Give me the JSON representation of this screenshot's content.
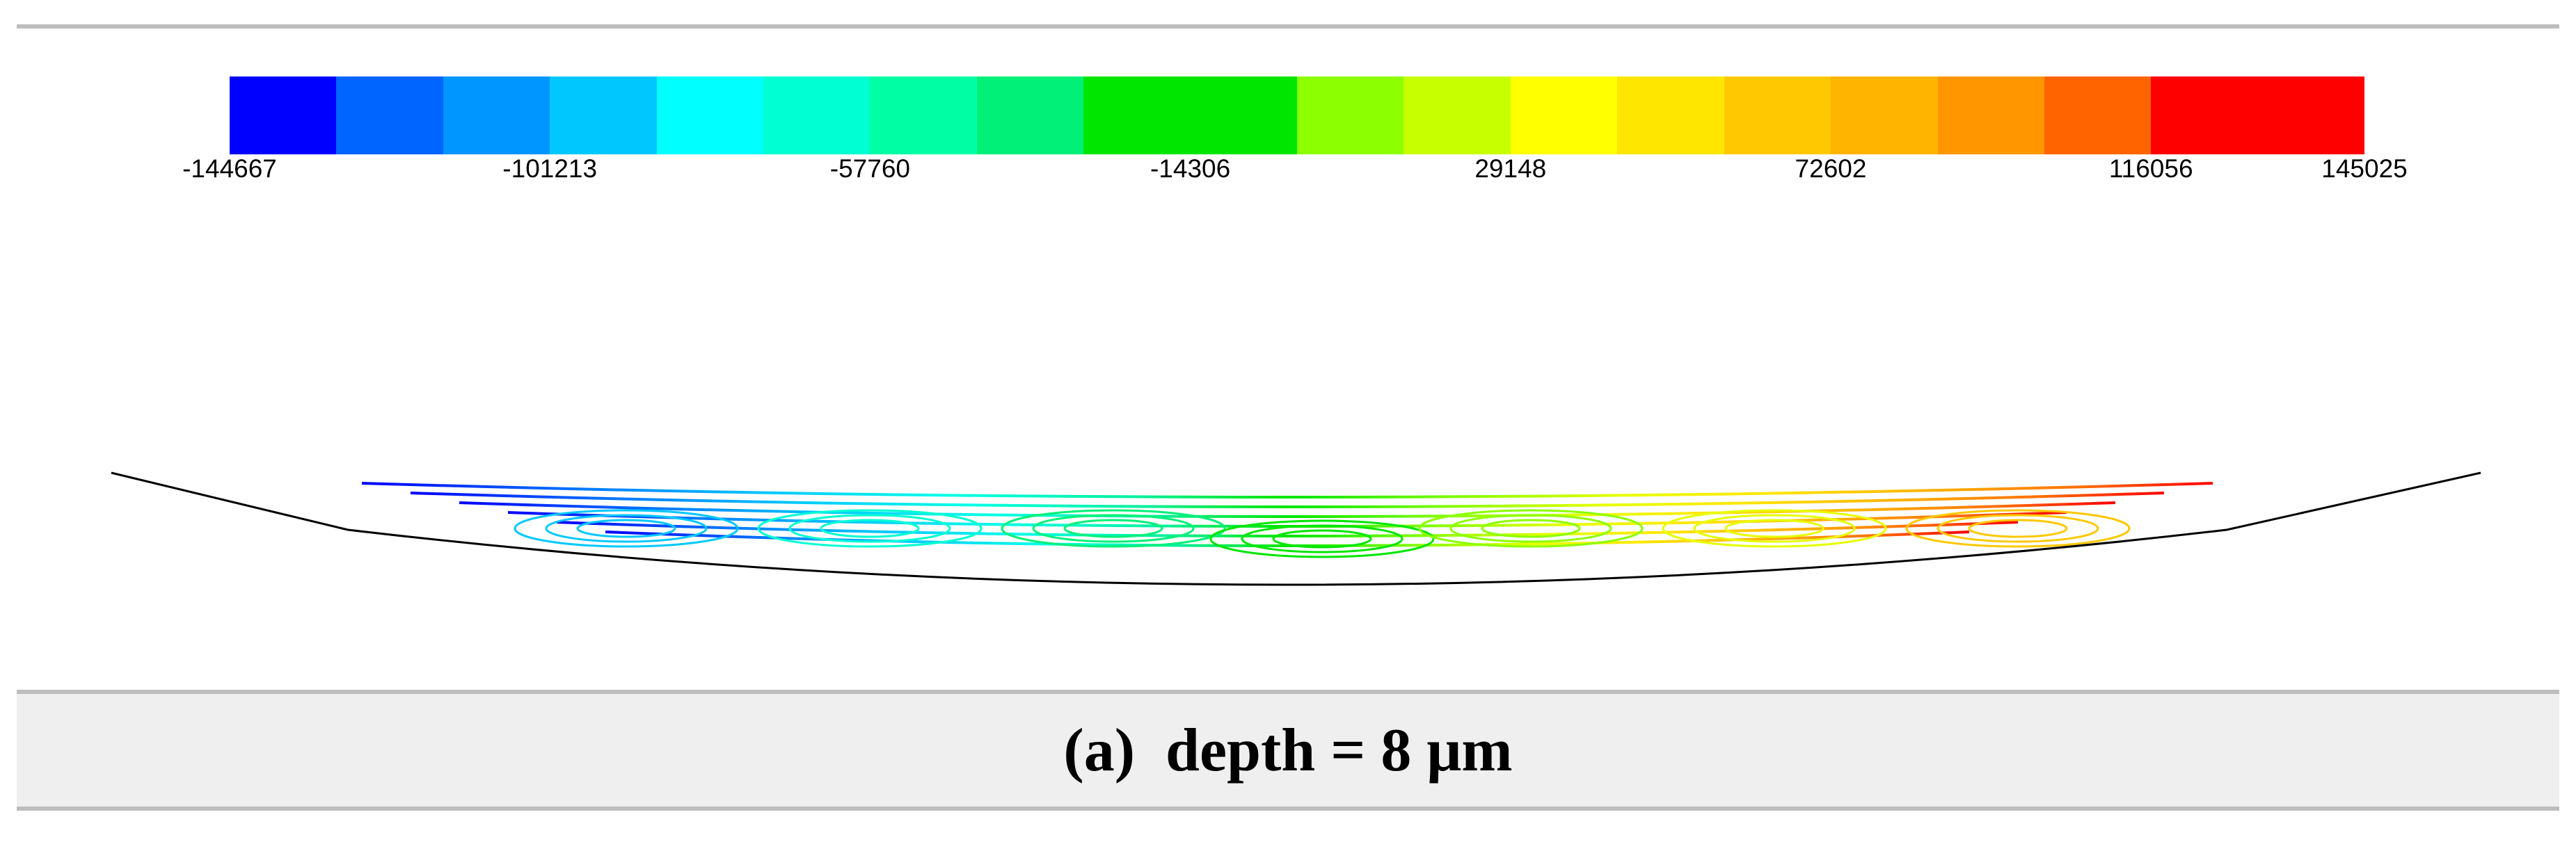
{
  "legend": {
    "colors": [
      "#0000ff",
      "#0064ff",
      "#0096ff",
      "#00c8ff",
      "#00ffff",
      "#00ffd2",
      "#00ffa5",
      "#00f078",
      "#00e600",
      "#00e600",
      "#8cff00",
      "#c8ff00",
      "#ffff00",
      "#ffe600",
      "#ffc800",
      "#ffb400",
      "#ff9600",
      "#ff6400",
      "#ff0000",
      "#ff0000"
    ],
    "ticks": [
      {
        "value": "-144667",
        "frac": 0.0
      },
      {
        "value": "-101213",
        "frac": 0.15
      },
      {
        "value": "-57760",
        "frac": 0.3
      },
      {
        "value": "-14306",
        "frac": 0.45
      },
      {
        "value": "29148",
        "frac": 0.6
      },
      {
        "value": "72602",
        "frac": 0.75
      },
      {
        "value": "116056",
        "frac": 0.9
      },
      {
        "value": "145025",
        "frac": 1.0
      }
    ]
  },
  "caption": {
    "text": "(a) depth = 8 μm"
  }
}
